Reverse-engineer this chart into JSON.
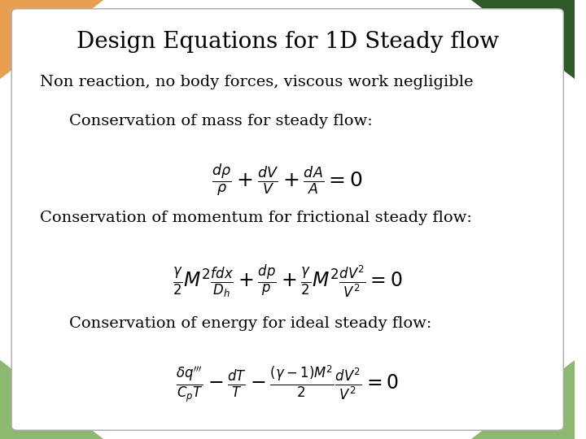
{
  "title": "Design Equations for 1D Steady flow",
  "subtitle": "Non reaction, no body forces, viscous work negligible",
  "label1": "Conservation of mass for steady flow:",
  "label2": "Conservation of momentum for frictional steady flow:",
  "label3": "Conservation of energy for ideal steady flow:",
  "bg_color": "#ffffff",
  "text_color": "#000000",
  "corner_tl": "#e8a050",
  "corner_tr": "#2d5a27",
  "corner_bl": "#8db870",
  "corner_br": "#8db870",
  "title_fontsize": 20,
  "label_fontsize": 14
}
